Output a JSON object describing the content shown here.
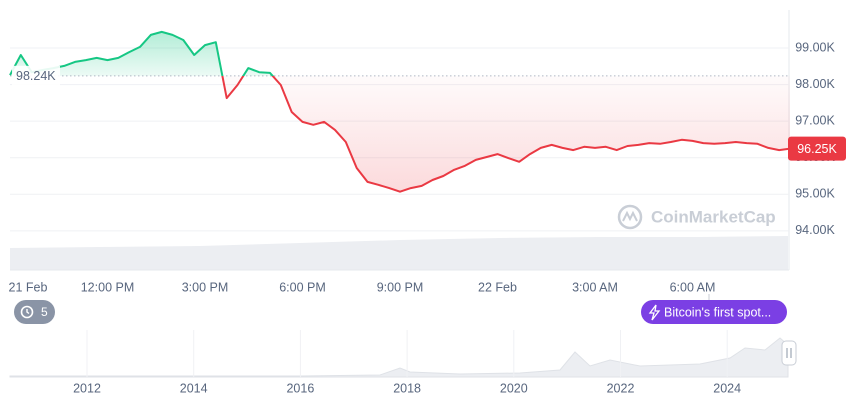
{
  "chart_data": {
    "type": "line",
    "categories": [
      "21 Feb",
      null,
      null,
      null,
      null,
      null,
      null,
      null,
      null,
      "12:00 PM",
      null,
      null,
      null,
      null,
      null,
      null,
      null,
      null,
      "3:00 PM",
      null,
      null,
      null,
      null,
      null,
      null,
      null,
      null,
      "6:00 PM",
      null,
      null,
      null,
      null,
      null,
      null,
      null,
      null,
      "9:00 PM",
      null,
      null,
      null,
      null,
      null,
      null,
      null,
      null,
      "22 Feb",
      null,
      null,
      null,
      null,
      null,
      null,
      null,
      null,
      "3:00 AM",
      null,
      null,
      null,
      null,
      null,
      null,
      null,
      null,
      "6:00 AM",
      null,
      null,
      null,
      null,
      null,
      null,
      null,
      null,
      null
    ],
    "values": [
      98260,
      98810,
      98340,
      98400,
      98450,
      98510,
      98620,
      98670,
      98730,
      98670,
      98730,
      98890,
      99030,
      99360,
      99440,
      99360,
      99220,
      98810,
      99080,
      99160,
      97630,
      97990,
      98450,
      98340,
      98320,
      97990,
      97250,
      96980,
      96900,
      96980,
      96760,
      96430,
      95720,
      95340,
      95260,
      95170,
      95070,
      95170,
      95230,
      95390,
      95500,
      95670,
      95780,
      95940,
      96020,
      96100,
      95990,
      95890,
      96100,
      96270,
      96350,
      96270,
      96210,
      96300,
      96270,
      96300,
      96210,
      96320,
      96350,
      96400,
      96380,
      96430,
      96490,
      96460,
      96400,
      96380,
      96400,
      96430,
      96400,
      96380,
      96270,
      96210,
      96250
    ],
    "up_color": "#16c784",
    "down_color": "#ea3943",
    "ylim": [
      92930,
      100040
    ],
    "yticks": [
      {
        "value": 94000,
        "label": "94.00K"
      },
      {
        "value": 95000,
        "label": "95.00K"
      },
      {
        "value": 96000,
        "label": "96.00K"
      },
      {
        "value": 97000,
        "label": "97.00K"
      },
      {
        "value": 98000,
        "label": "98.00K"
      },
      {
        "value": 99000,
        "label": "99.00K"
      }
    ],
    "grid": true,
    "baseline": {
      "value": 98240,
      "label": "98.24K"
    },
    "current": {
      "value": 96250,
      "label": "96.25K"
    },
    "watermark": "CoinMarketCap",
    "history_count": "5",
    "event_label": "Bitcoin's first spot...",
    "navigator_years": [
      "2012",
      "2014",
      "2016",
      "2018",
      "2020",
      "2022",
      "2024"
    ]
  }
}
